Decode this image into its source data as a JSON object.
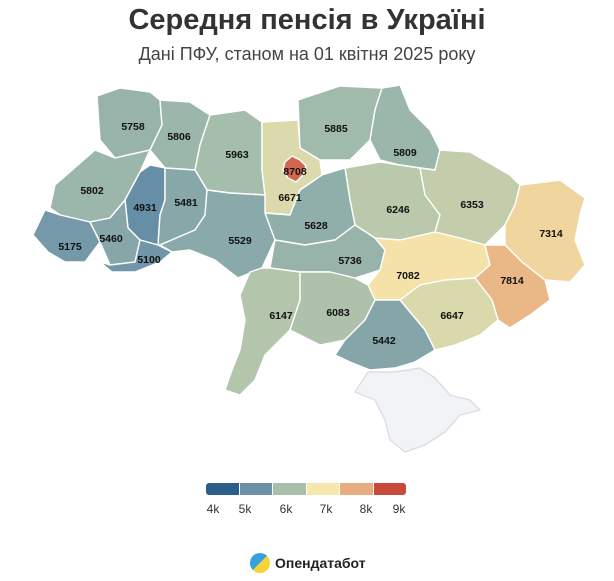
{
  "header": {
    "title": "Середня пенсія в Україні",
    "subtitle": "Дані ПФУ, станом на 01 квітня 2025 року"
  },
  "map": {
    "regions": [
      {
        "value": "5758",
        "num": 5758
      },
      {
        "value": "5806",
        "num": 5806
      },
      {
        "value": "5963",
        "num": 5963
      },
      {
        "value": "5885",
        "num": 5885
      },
      {
        "value": "8708",
        "num": 8708
      },
      {
        "value": "5809",
        "num": 5809
      },
      {
        "value": "5802",
        "num": 5802
      },
      {
        "value": "4931",
        "num": 4931
      },
      {
        "value": "5481",
        "num": 5481
      },
      {
        "value": "6671",
        "num": 6671
      },
      {
        "value": "6246",
        "num": 6246
      },
      {
        "value": "6353",
        "num": 6353
      },
      {
        "value": "7314",
        "num": 7314
      },
      {
        "value": "5175",
        "num": 5175
      },
      {
        "value": "5460",
        "num": 5460
      },
      {
        "value": "5100",
        "num": 5100
      },
      {
        "value": "5529",
        "num": 5529
      },
      {
        "value": "5628",
        "num": 5628
      },
      {
        "value": "5736",
        "num": 5736
      },
      {
        "value": "7082",
        "num": 7082
      },
      {
        "value": "7814",
        "num": 7814
      },
      {
        "value": "6147",
        "num": 6147
      },
      {
        "value": "6083",
        "num": 6083
      },
      {
        "value": "6647",
        "num": 6647
      },
      {
        "value": "5442",
        "num": 5442
      }
    ],
    "no_data_color": "#f2f3f6"
  },
  "legend": {
    "ticks": [
      "4k",
      "5k",
      "6k",
      "7k",
      "8k",
      "9k"
    ],
    "colors": [
      "#2b5f8a",
      "#6a91a8",
      "#a7bfab",
      "#f6e7ac",
      "#e7ad7e",
      "#c84a3c"
    ]
  },
  "brand": {
    "name": "Опендатабот"
  }
}
